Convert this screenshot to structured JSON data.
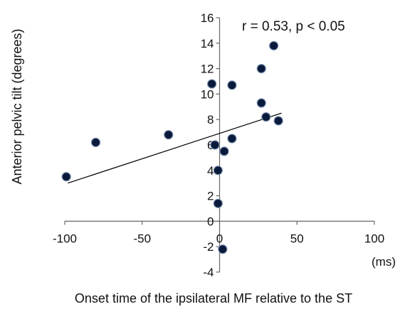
{
  "chart_data": {
    "type": "scatter",
    "title": "",
    "xlabel": "Onset time of the ipsilateral MF relative to the ST",
    "xunit": "(ms)",
    "ylabel": "Anterior pelvic tilt (degrees)",
    "xlim": [
      -100,
      100
    ],
    "ylim": [
      -4,
      16
    ],
    "xticks": [
      -100,
      -50,
      0,
      50,
      100
    ],
    "yticks": [
      -4,
      -2,
      0,
      2,
      4,
      6,
      8,
      10,
      12,
      14,
      16
    ],
    "grid": false,
    "annotation": "r = 0.53, p < 0.05",
    "series": [
      {
        "points": [
          {
            "x": -99,
            "y": 3.5
          },
          {
            "x": -80,
            "y": 6.2
          },
          {
            "x": -33,
            "y": 6.8
          },
          {
            "x": -5,
            "y": 10.8
          },
          {
            "x": -3,
            "y": 6.0
          },
          {
            "x": -1,
            "y": 4.0
          },
          {
            "x": -1,
            "y": 1.4
          },
          {
            "x": 2,
            "y": -2.2
          },
          {
            "x": 3,
            "y": 5.5
          },
          {
            "x": 8,
            "y": 6.5
          },
          {
            "x": 8,
            "y": 10.7
          },
          {
            "x": 27,
            "y": 9.3
          },
          {
            "x": 27,
            "y": 12.0
          },
          {
            "x": 30,
            "y": 8.2
          },
          {
            "x": 35,
            "y": 13.8
          },
          {
            "x": 38,
            "y": 7.9
          }
        ],
        "color": "#0a1a3a"
      }
    ],
    "trendline": {
      "x": [
        -98,
        40
      ],
      "y": [
        3.0,
        8.5
      ],
      "color": "#000000"
    }
  }
}
